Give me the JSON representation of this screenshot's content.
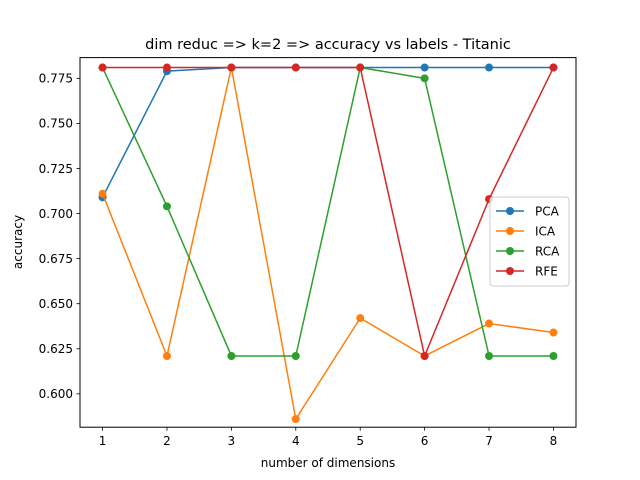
{
  "chart_data": {
    "type": "line",
    "title": "dim reduc => k=2 => accuracy vs labels - Titanic",
    "xlabel": "number of dimensions",
    "ylabel": "accuracy",
    "x": [
      1,
      2,
      3,
      4,
      5,
      6,
      7,
      8
    ],
    "xlim": [
      0.65,
      8.35
    ],
    "ylim": [
      0.5815,
      0.7865
    ],
    "yticks": [
      0.6,
      0.625,
      0.65,
      0.675,
      0.7,
      0.725,
      0.75,
      0.775
    ],
    "ytick_labels": [
      "0.600",
      "0.625",
      "0.650",
      "0.675",
      "0.700",
      "0.725",
      "0.750",
      "0.775"
    ],
    "xtick_labels": [
      "1",
      "2",
      "3",
      "4",
      "5",
      "6",
      "7",
      "8"
    ],
    "grid": false,
    "legend_position": "center-right",
    "series": [
      {
        "name": "PCA",
        "color": "#1f77b4",
        "values": [
          0.709,
          0.779,
          0.781,
          0.781,
          0.781,
          0.781,
          0.781,
          0.781
        ]
      },
      {
        "name": "ICA",
        "color": "#ff7f0e",
        "values": [
          0.711,
          0.621,
          0.781,
          0.586,
          0.642,
          0.621,
          0.639,
          0.634
        ]
      },
      {
        "name": "RCA",
        "color": "#2ca02c",
        "values": [
          0.781,
          0.704,
          0.621,
          0.621,
          0.781,
          0.775,
          0.621,
          0.621
        ]
      },
      {
        "name": "RFE",
        "color": "#d62728",
        "values": [
          0.781,
          0.781,
          0.781,
          0.781,
          0.781,
          0.621,
          0.708,
          0.781
        ]
      }
    ]
  }
}
